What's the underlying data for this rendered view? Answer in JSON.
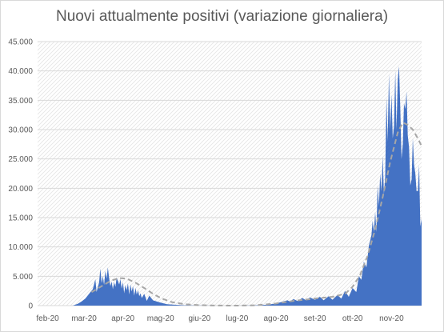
{
  "chart_data": {
    "type": "area",
    "title": "Nuovi attualmente positivi (variazione giornaliera)",
    "xlabel": "",
    "ylabel": "",
    "ylim": [
      0,
      45000
    ],
    "ytick_labels": [
      "0",
      "5.000",
      "10.000",
      "15.000",
      "20.000",
      "25.000",
      "30.000",
      "35.000",
      "40.000",
      "45.000"
    ],
    "ytick_values": [
      0,
      5000,
      10000,
      15000,
      20000,
      25000,
      30000,
      35000,
      40000,
      45000
    ],
    "xtick_labels": [
      "feb-20",
      "mar-20",
      "apr-20",
      "mag-20",
      "giu-20",
      "lug-20",
      "ago-20",
      "set-20",
      "ott-20",
      "nov-20"
    ],
    "xtick_dates": [
      "2020-02-01",
      "2020-03-01",
      "2020-04-01",
      "2020-05-01",
      "2020-06-01",
      "2020-07-01",
      "2020-08-01",
      "2020-09-01",
      "2020-10-01",
      "2020-11-01"
    ],
    "x_range": [
      "2020-01-24",
      "2020-11-25"
    ],
    "grid": true,
    "legend": "none",
    "colors": {
      "area": "#4472c4",
      "trend": "#a6a6a6",
      "grid": "#d9d9d9",
      "text": "#595959",
      "hatch": "#e6e6e6"
    },
    "series": [
      {
        "style": "area",
        "points": [
          [
            "2020-02-21",
            0
          ],
          [
            "2020-02-25",
            300
          ],
          [
            "2020-02-28",
            700
          ],
          [
            "2020-03-02",
            1200
          ],
          [
            "2020-03-05",
            2000
          ],
          [
            "2020-03-08",
            2800
          ],
          [
            "2020-03-10",
            4500
          ],
          [
            "2020-03-11",
            2300
          ],
          [
            "2020-03-13",
            4000
          ],
          [
            "2020-03-14",
            6300
          ],
          [
            "2020-03-15",
            3800
          ],
          [
            "2020-03-16",
            5000
          ],
          [
            "2020-03-17",
            3500
          ],
          [
            "2020-03-18",
            5900
          ],
          [
            "2020-03-19",
            4600
          ],
          [
            "2020-03-20",
            6500
          ],
          [
            "2020-03-21",
            4700
          ],
          [
            "2020-03-22",
            3300
          ],
          [
            "2020-03-23",
            4100
          ],
          [
            "2020-03-24",
            2800
          ],
          [
            "2020-03-25",
            4000
          ],
          [
            "2020-03-26",
            3200
          ],
          [
            "2020-03-27",
            4800
          ],
          [
            "2020-03-28",
            4200
          ],
          [
            "2020-03-29",
            3600
          ],
          [
            "2020-03-30",
            4500
          ],
          [
            "2020-03-31",
            2900
          ],
          [
            "2020-04-01",
            4000
          ],
          [
            "2020-04-02",
            2100
          ],
          [
            "2020-04-03",
            3500
          ],
          [
            "2020-04-04",
            2600
          ],
          [
            "2020-04-05",
            3800
          ],
          [
            "2020-04-06",
            1900
          ],
          [
            "2020-04-07",
            3600
          ],
          [
            "2020-04-08",
            2400
          ],
          [
            "2020-04-09",
            3300
          ],
          [
            "2020-04-10",
            1700
          ],
          [
            "2020-04-11",
            3000
          ],
          [
            "2020-04-12",
            1900
          ],
          [
            "2020-04-13",
            2600
          ],
          [
            "2020-04-14",
            1600
          ],
          [
            "2020-04-15",
            2100
          ],
          [
            "2020-04-16",
            1300
          ],
          [
            "2020-04-18",
            2000
          ],
          [
            "2020-04-20",
            800
          ],
          [
            "2020-04-22",
            1700
          ],
          [
            "2020-04-25",
            900
          ],
          [
            "2020-04-28",
            700
          ],
          [
            "2020-05-01",
            500
          ],
          [
            "2020-05-06",
            250
          ],
          [
            "2020-05-12",
            150
          ],
          [
            "2020-05-20",
            50
          ],
          [
            "2020-06-01",
            20
          ],
          [
            "2020-06-15",
            0
          ],
          [
            "2020-07-01",
            0
          ],
          [
            "2020-07-15",
            30
          ],
          [
            "2020-07-25",
            150
          ],
          [
            "2020-08-01",
            350
          ],
          [
            "2020-08-05",
            600
          ],
          [
            "2020-08-10",
            900
          ],
          [
            "2020-08-12",
            700
          ],
          [
            "2020-08-15",
            1100
          ],
          [
            "2020-08-18",
            800
          ],
          [
            "2020-08-22",
            1300
          ],
          [
            "2020-08-25",
            900
          ],
          [
            "2020-08-28",
            1400
          ],
          [
            "2020-09-01",
            1000
          ],
          [
            "2020-09-05",
            1500
          ],
          [
            "2020-09-08",
            900
          ],
          [
            "2020-09-12",
            1600
          ],
          [
            "2020-09-15",
            1000
          ],
          [
            "2020-09-19",
            1800
          ],
          [
            "2020-09-22",
            1200
          ],
          [
            "2020-09-25",
            2500
          ],
          [
            "2020-09-28",
            1500
          ],
          [
            "2020-10-01",
            3000
          ],
          [
            "2020-10-04",
            2300
          ],
          [
            "2020-10-06",
            5000
          ],
          [
            "2020-10-08",
            4400
          ],
          [
            "2020-10-10",
            7500
          ],
          [
            "2020-10-12",
            6500
          ],
          [
            "2020-10-14",
            10200
          ],
          [
            "2020-10-16",
            12000
          ],
          [
            "2020-10-17",
            14500
          ],
          [
            "2020-10-18",
            12500
          ],
          [
            "2020-10-19",
            16000
          ],
          [
            "2020-10-20",
            12500
          ],
          [
            "2020-10-21",
            20500
          ],
          [
            "2020-10-22",
            17000
          ],
          [
            "2020-10-23",
            22500
          ],
          [
            "2020-10-24",
            19500
          ],
          [
            "2020-10-25",
            25500
          ],
          [
            "2020-10-26",
            19000
          ],
          [
            "2020-10-27",
            22000
          ],
          [
            "2020-10-28",
            35500
          ],
          [
            "2020-10-29",
            28000
          ],
          [
            "2020-10-30",
            39500
          ],
          [
            "2020-10-31",
            30000
          ],
          [
            "2020-11-01",
            36000
          ],
          [
            "2020-11-02",
            28500
          ],
          [
            "2020-11-03",
            30500
          ],
          [
            "2020-11-04",
            40000
          ],
          [
            "2020-11-05",
            30000
          ],
          [
            "2020-11-06",
            38500
          ],
          [
            "2020-11-07",
            40800
          ],
          [
            "2020-11-08",
            34000
          ],
          [
            "2020-11-09",
            25000
          ],
          [
            "2020-11-10",
            27500
          ],
          [
            "2020-11-11",
            34500
          ],
          [
            "2020-11-12",
            33500
          ],
          [
            "2020-11-13",
            36500
          ],
          [
            "2020-11-14",
            29000
          ],
          [
            "2020-11-15",
            27000
          ],
          [
            "2020-11-16",
            20500
          ],
          [
            "2020-11-17",
            21500
          ],
          [
            "2020-11-18",
            28500
          ],
          [
            "2020-11-19",
            24000
          ],
          [
            "2020-11-20",
            22500
          ],
          [
            "2020-11-21",
            19500
          ],
          [
            "2020-11-22",
            19500
          ],
          [
            "2020-11-23",
            24000
          ],
          [
            "2020-11-24",
            13500
          ],
          [
            "2020-11-25",
            14800
          ]
        ]
      },
      {
        "style": "dashed-line",
        "points": [
          [
            "2020-03-07",
            2300
          ],
          [
            "2020-03-15",
            3300
          ],
          [
            "2020-03-22",
            4200
          ],
          [
            "2020-03-29",
            4700
          ],
          [
            "2020-04-04",
            4600
          ],
          [
            "2020-04-11",
            3900
          ],
          [
            "2020-04-18",
            3000
          ],
          [
            "2020-04-25",
            2000
          ],
          [
            "2020-05-02",
            1200
          ],
          [
            "2020-05-10",
            600
          ],
          [
            "2020-05-20",
            250
          ],
          [
            "2020-06-01",
            80
          ],
          [
            "2020-06-15",
            20
          ],
          [
            "2020-07-01",
            0
          ],
          [
            "2020-07-15",
            60
          ],
          [
            "2020-08-01",
            350
          ],
          [
            "2020-08-15",
            800
          ],
          [
            "2020-09-01",
            1200
          ],
          [
            "2020-09-15",
            1500
          ],
          [
            "2020-09-25",
            2000
          ],
          [
            "2020-10-01",
            3200
          ],
          [
            "2020-10-07",
            5200
          ],
          [
            "2020-10-13",
            8500
          ],
          [
            "2020-10-19",
            13000
          ],
          [
            "2020-10-25",
            18500
          ],
          [
            "2020-10-31",
            24500
          ],
          [
            "2020-11-06",
            29500
          ],
          [
            "2020-11-10",
            31200
          ],
          [
            "2020-11-14",
            30800
          ],
          [
            "2020-11-18",
            30000
          ],
          [
            "2020-11-22",
            28500
          ],
          [
            "2020-11-25",
            27200
          ]
        ]
      }
    ]
  }
}
